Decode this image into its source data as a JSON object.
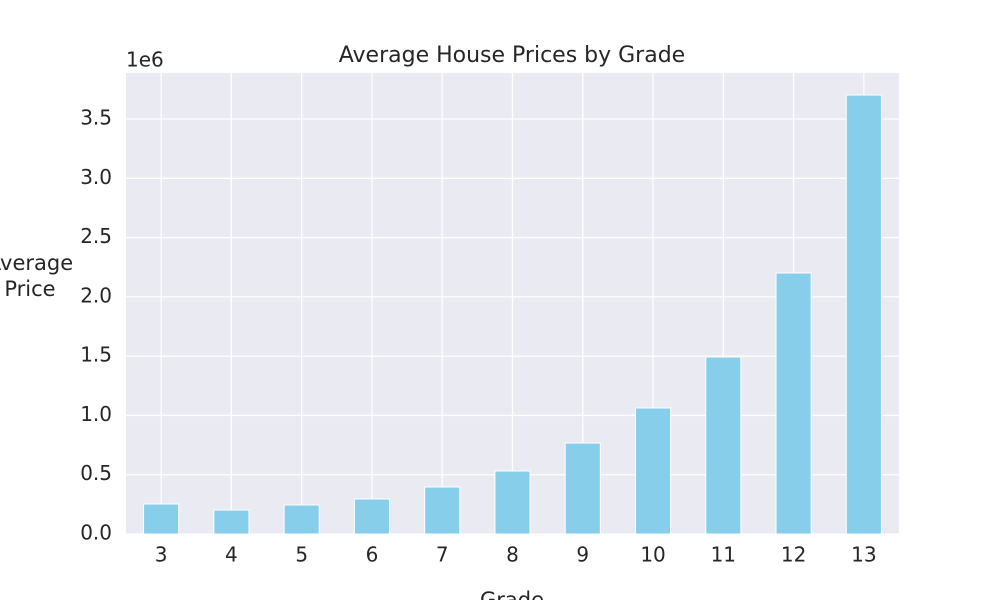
{
  "chart_data": {
    "type": "bar",
    "title": "Average House Prices by Grade",
    "x_label": "Grade",
    "y_label": "Average\nPrice",
    "y_offset_label": "1e6",
    "categories": [
      "3",
      "4",
      "5",
      "6",
      "7",
      "8",
      "9",
      "10",
      "11",
      "12",
      "13"
    ],
    "values": [
      253000,
      202000,
      245000,
      295000,
      396000,
      531000,
      767000,
      1063000,
      1493000,
      2201000,
      3702000
    ],
    "color": "#87ceeb",
    "ylim": [
      0,
      3888000
    ],
    "yticks": [
      {
        "value": 0,
        "label": "0.0"
      },
      {
        "value": 500000,
        "label": "0.5"
      },
      {
        "value": 1000000,
        "label": "1.0"
      },
      {
        "value": 1500000,
        "label": "1.5"
      },
      {
        "value": 2000000,
        "label": "2.0"
      },
      {
        "value": 2500000,
        "label": "2.5"
      },
      {
        "value": 3000000,
        "label": "3.0"
      },
      {
        "value": 3500000,
        "label": "3.5"
      }
    ],
    "grid": true
  }
}
